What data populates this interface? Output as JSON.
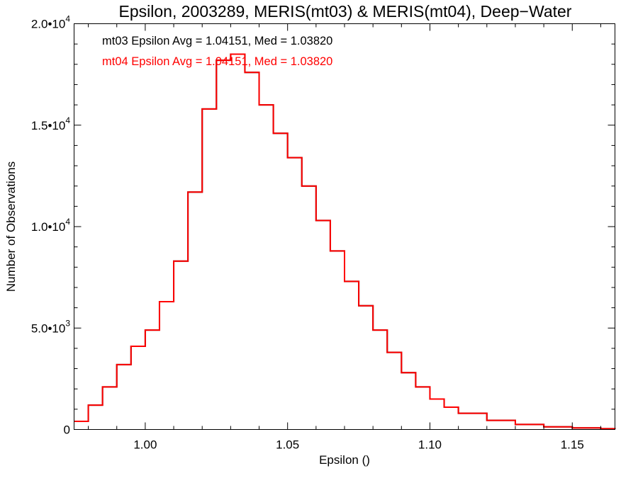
{
  "chart_data": {
    "type": "line",
    "step": true,
    "title": "Epsilon, 2003289, MERIS(mt03) & MERIS(mt04), Deep−Water",
    "xlabel": "Epsilon ()",
    "ylabel": "Number of Observations",
    "xlim": [
      0.975,
      1.165
    ],
    "ylim": [
      0,
      20000
    ],
    "x_ticks": [
      {
        "value": 1.0,
        "label": "1.00"
      },
      {
        "value": 1.05,
        "label": "1.05"
      },
      {
        "value": 1.1,
        "label": "1.10"
      },
      {
        "value": 1.15,
        "label": "1.15"
      }
    ],
    "y_ticks": [
      {
        "value": 0,
        "mant": "0",
        "exp": ""
      },
      {
        "value": 5000,
        "mant": "5.0•10",
        "exp": "3"
      },
      {
        "value": 10000,
        "mant": "1.0•10",
        "exp": "4"
      },
      {
        "value": 15000,
        "mant": "1.5•10",
        "exp": "4"
      },
      {
        "value": 20000,
        "mant": "2.0•10",
        "exp": "4"
      }
    ],
    "legend": {
      "placement": "top-left",
      "entries": [
        {
          "text": "mt03 Epsilon Avg = 1.04151, Med = 1.03820",
          "color": "#000000"
        },
        {
          "text": "mt04 Epsilon Avg = 1.04151, Med = 1.03820",
          "color": "#ff0000"
        }
      ]
    },
    "series": [
      {
        "color": "#000000",
        "x": [
          0.975,
          0.98,
          0.985,
          0.99,
          0.995,
          1.0,
          1.005,
          1.01,
          1.015,
          1.02,
          1.025,
          1.03,
          1.035,
          1.04,
          1.045,
          1.05,
          1.055,
          1.06,
          1.065,
          1.07,
          1.075,
          1.08,
          1.085,
          1.09,
          1.095,
          1.1,
          1.105,
          1.11,
          1.12,
          1.13,
          1.14,
          1.15,
          1.16,
          1.165
        ],
        "values": [
          400,
          1200,
          2100,
          3200,
          4100,
          4900,
          6300,
          8300,
          11700,
          15800,
          18200,
          18500,
          17600,
          16000,
          14600,
          13400,
          12000,
          10300,
          8800,
          7300,
          6100,
          4900,
          3800,
          2800,
          2100,
          1500,
          1100,
          800,
          450,
          250,
          130,
          80,
          40,
          20
        ]
      },
      {
        "color": "#ff0000",
        "x": [
          0.975,
          0.98,
          0.985,
          0.99,
          0.995,
          1.0,
          1.005,
          1.01,
          1.015,
          1.02,
          1.025,
          1.03,
          1.035,
          1.04,
          1.045,
          1.05,
          1.055,
          1.06,
          1.065,
          1.07,
          1.075,
          1.08,
          1.085,
          1.09,
          1.095,
          1.1,
          1.105,
          1.11,
          1.12,
          1.13,
          1.14,
          1.15,
          1.16,
          1.165
        ],
        "values": [
          400,
          1200,
          2100,
          3200,
          4100,
          4900,
          6300,
          8300,
          11700,
          15800,
          18200,
          18500,
          17600,
          16000,
          14600,
          13400,
          12000,
          10300,
          8800,
          7300,
          6100,
          4900,
          3800,
          2800,
          2100,
          1500,
          1100,
          800,
          450,
          250,
          130,
          80,
          40,
          20
        ]
      }
    ]
  }
}
